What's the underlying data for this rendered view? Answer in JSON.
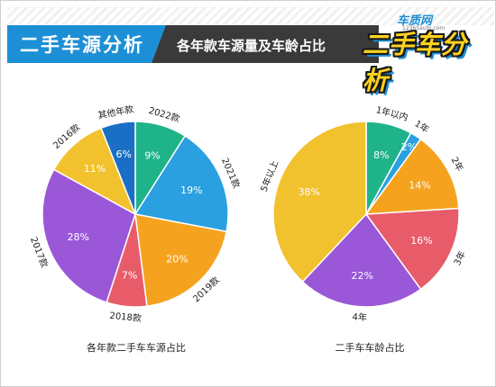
{
  "header": {
    "title": "二手车源分析",
    "subtitle": "各年款车源量及车龄占比",
    "logo_small": "车质网",
    "logo_url": "12365auto.com",
    "logo_main": "二手车分析",
    "accent_color": "#1d8fd6"
  },
  "chart_data": [
    {
      "type": "pie",
      "title": "各年款二手车车源占比",
      "categories": [
        "2022款",
        "2021款",
        "2019款",
        "2018款",
        "2017款",
        "2016款",
        "其他年款"
      ],
      "values": [
        9,
        19,
        20,
        7,
        28,
        11,
        6
      ],
      "value_labels": [
        "9%",
        "19%",
        "20%",
        "7%",
        "28%",
        "11%",
        "6%"
      ],
      "colors": [
        "#1fb38a",
        "#2aa0e0",
        "#f5a31f",
        "#e85c6a",
        "#9a57d8",
        "#f2c12e",
        "#1a6fc4"
      ],
      "start_angle_deg": 0,
      "direction": "clockwise"
    },
    {
      "type": "pie",
      "title": "二手车车龄占比",
      "categories": [
        "1年以内",
        "1年",
        "2年",
        "3年",
        "4年",
        "5年以上"
      ],
      "values": [
        8,
        2,
        14,
        16,
        22,
        38
      ],
      "value_labels": [
        "8%",
        "2%",
        "14%",
        "16%",
        "22%",
        "38%"
      ],
      "colors": [
        "#1fb38a",
        "#2aa0e0",
        "#f5a31f",
        "#e85c6a",
        "#9a57d8",
        "#f2c12e"
      ],
      "start_angle_deg": 0,
      "direction": "clockwise"
    }
  ]
}
